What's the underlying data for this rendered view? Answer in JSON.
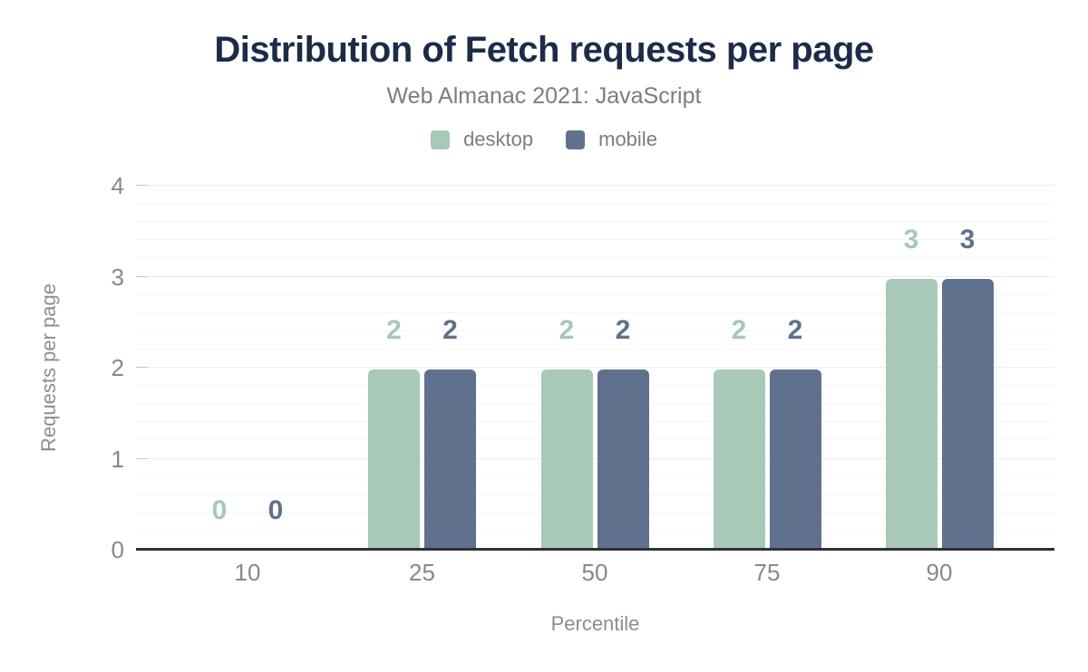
{
  "chart": {
    "title": "Distribution of Fetch requests per page",
    "subtitle": "Web Almanac 2021: JavaScript"
  },
  "chart_data": {
    "type": "bar",
    "title": "Distribution of Fetch requests per page",
    "subtitle": "Web Almanac 2021: JavaScript",
    "categories": [
      "10",
      "25",
      "50",
      "75",
      "90"
    ],
    "series": [
      {
        "name": "desktop",
        "color": "#a8c8b8",
        "values": [
          0,
          2,
          2,
          2,
          3
        ],
        "labels": [
          "0",
          "2",
          "2",
          "2",
          "3"
        ]
      },
      {
        "name": "mobile",
        "color": "#5f718d",
        "values": [
          0,
          2,
          2,
          2,
          3
        ],
        "labels": [
          "0",
          "2",
          "2",
          "2",
          "3"
        ]
      }
    ],
    "xlabel": "Percentile",
    "ylabel": "Requests per page",
    "ylim": [
      0,
      4
    ],
    "y_major_ticks": [
      0,
      1,
      2,
      3,
      4
    ],
    "y_minor_step": 0.2,
    "grid": "horizontal-minor-and-major",
    "legend_position": "top",
    "bar_value_labels_shown": true
  },
  "colors": {
    "title_text": "#1c2b4a",
    "subtitle_text": "#7a7d84",
    "axis_text": "#85888e",
    "axis_line": "#303135",
    "grid_minor": "#f6f6f7",
    "grid_major": "#ececef",
    "desktop_series": "#a8c8b8",
    "mobile_series": "#5f718d",
    "background": "#ffffff"
  }
}
